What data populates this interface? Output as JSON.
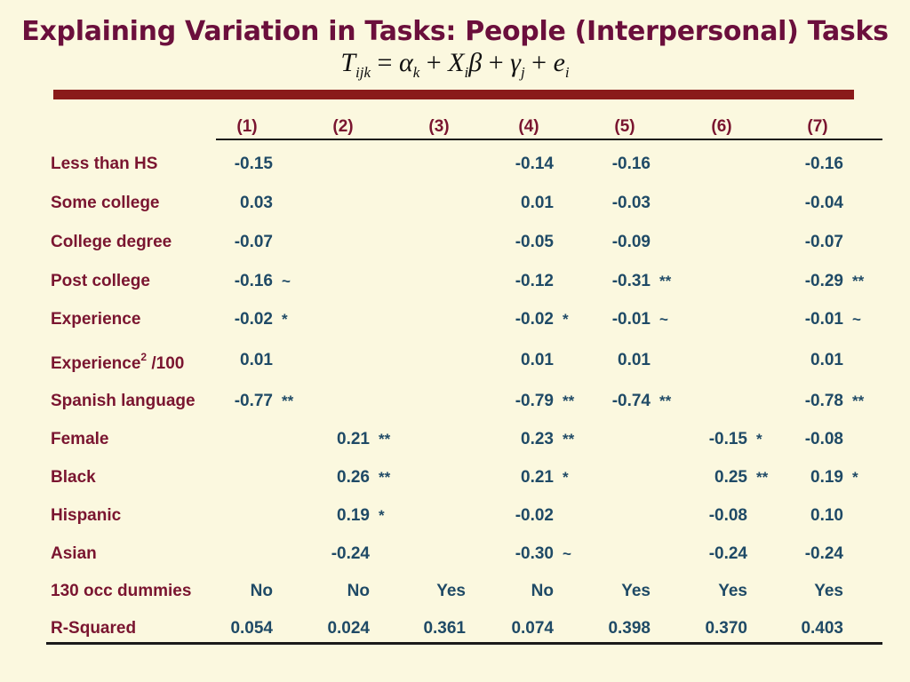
{
  "title": "Explaining Variation in Tasks: People (Interpersonal) Tasks",
  "formula": {
    "T": "T",
    "T_sub": "ijk",
    "eq": "=",
    "alpha": "α",
    "alpha_sub": "k",
    "plus1": "+",
    "X": "X",
    "X_sub": "i",
    "beta": "β",
    "plus2": "+",
    "gamma": "γ",
    "gamma_sub": "j",
    "plus3": "+",
    "e": "e",
    "e_sub": "i"
  },
  "columns": [
    "(1)",
    "(2)",
    "(3)",
    "(4)",
    "(5)",
    "(6)",
    "(7)"
  ],
  "rows": [
    {
      "label": "Less than HS",
      "cells": [
        [
          "-0.15",
          ""
        ],
        [
          "",
          ""
        ],
        [
          "",
          ""
        ],
        [
          "-0.14",
          ""
        ],
        [
          "-0.16",
          ""
        ],
        [
          "",
          ""
        ],
        [
          "-0.16",
          ""
        ]
      ]
    },
    {
      "label": "Some college",
      "cells": [
        [
          "0.03",
          ""
        ],
        [
          "",
          ""
        ],
        [
          "",
          ""
        ],
        [
          "0.01",
          ""
        ],
        [
          "-0.03",
          ""
        ],
        [
          "",
          ""
        ],
        [
          "-0.04",
          ""
        ]
      ]
    },
    {
      "label": "College degree",
      "cells": [
        [
          "-0.07",
          ""
        ],
        [
          "",
          ""
        ],
        [
          "",
          ""
        ],
        [
          "-0.05",
          ""
        ],
        [
          "-0.09",
          ""
        ],
        [
          "",
          ""
        ],
        [
          "-0.07",
          ""
        ]
      ]
    },
    {
      "label": "Post college",
      "cells": [
        [
          "-0.16",
          "~"
        ],
        [
          "",
          ""
        ],
        [
          "",
          ""
        ],
        [
          "-0.12",
          ""
        ],
        [
          "-0.31",
          "**"
        ],
        [
          "",
          ""
        ],
        [
          "-0.29",
          "**"
        ]
      ]
    },
    {
      "label": "Experience",
      "cells": [
        [
          "-0.02",
          "*"
        ],
        [
          "",
          ""
        ],
        [
          "",
          ""
        ],
        [
          "-0.02",
          "*"
        ],
        [
          "-0.01",
          "~"
        ],
        [
          "",
          ""
        ],
        [
          "-0.01",
          "~"
        ]
      ]
    },
    {
      "label": "Experience",
      "label_sup": "2",
      "label_suffix": " /100",
      "cells": [
        [
          "0.01",
          ""
        ],
        [
          "",
          ""
        ],
        [
          "",
          ""
        ],
        [
          "0.01",
          ""
        ],
        [
          "0.01",
          ""
        ],
        [
          "",
          ""
        ],
        [
          "0.01",
          ""
        ]
      ]
    },
    {
      "label": "Spanish language",
      "cells": [
        [
          "-0.77",
          "**"
        ],
        [
          "",
          ""
        ],
        [
          "",
          ""
        ],
        [
          "-0.79",
          "**"
        ],
        [
          "-0.74",
          "**"
        ],
        [
          "",
          ""
        ],
        [
          "-0.78",
          "**"
        ]
      ]
    },
    {
      "label": "Female",
      "cells": [
        [
          "",
          ""
        ],
        [
          "0.21",
          "**"
        ],
        [
          "",
          ""
        ],
        [
          "0.23",
          "**"
        ],
        [
          "",
          ""
        ],
        [
          "-0.15",
          "*"
        ],
        [
          "-0.08",
          ""
        ]
      ]
    },
    {
      "label": "Black",
      "cells": [
        [
          "",
          ""
        ],
        [
          "0.26",
          "**"
        ],
        [
          "",
          ""
        ],
        [
          "0.21",
          "*"
        ],
        [
          "",
          ""
        ],
        [
          "0.25",
          "**"
        ],
        [
          "0.19",
          "*"
        ]
      ]
    },
    {
      "label": "Hispanic",
      "cells": [
        [
          "",
          ""
        ],
        [
          "0.19",
          "*"
        ],
        [
          "",
          ""
        ],
        [
          "-0.02",
          ""
        ],
        [
          "",
          ""
        ],
        [
          "-0.08",
          ""
        ],
        [
          "0.10",
          ""
        ]
      ]
    },
    {
      "label": "Asian",
      "cells": [
        [
          "",
          ""
        ],
        [
          "-0.24",
          ""
        ],
        [
          "",
          ""
        ],
        [
          "-0.30",
          "~"
        ],
        [
          "",
          ""
        ],
        [
          "-0.24",
          ""
        ],
        [
          "-0.24",
          ""
        ]
      ]
    },
    {
      "label": "130 occ dummies",
      "cells": [
        [
          "No",
          ""
        ],
        [
          "No",
          ""
        ],
        [
          "Yes",
          ""
        ],
        [
          "No",
          ""
        ],
        [
          "Yes",
          ""
        ],
        [
          "Yes",
          ""
        ],
        [
          "Yes",
          ""
        ]
      ]
    },
    {
      "label": "R-Squared",
      "cells": [
        [
          "0.054",
          ""
        ],
        [
          "0.024",
          ""
        ],
        [
          "0.361",
          ""
        ],
        [
          "0.074",
          ""
        ],
        [
          "0.398",
          ""
        ],
        [
          "0.370",
          ""
        ],
        [
          "0.403",
          ""
        ]
      ]
    }
  ]
}
